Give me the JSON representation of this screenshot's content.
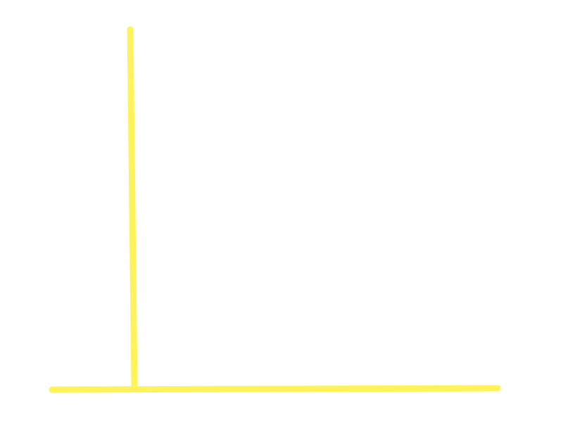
{
  "canvas": {
    "background": "#ffffff"
  },
  "strokes": [
    {
      "name": "vertical-stroke",
      "color": "#fff35c"
    },
    {
      "name": "horizontal-stroke",
      "color": "#fff35c"
    }
  ]
}
